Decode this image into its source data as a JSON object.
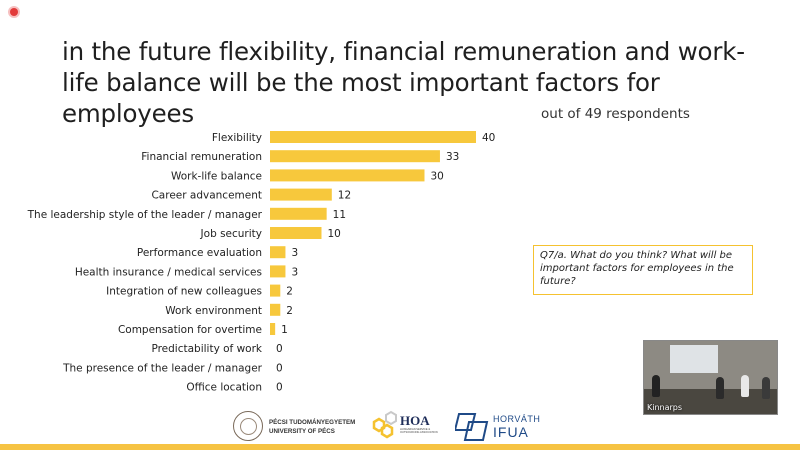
{
  "title": "in the future flexibility, financial remuneration and work-life balance will be the most important factors for employees",
  "subtitle": "out of 49 respondents",
  "question": "Q7/a. What do you think? What will be important factors for employees in the future?",
  "video": {
    "caption": "Kinnarps"
  },
  "logos": {
    "pte_line1": "PÉCSI TUDOMÁNYEGYETEM",
    "pte_line2": "UNIVERSITY OF PÉCS",
    "hoa_name": "HOA",
    "hoa_sub": "HUNGARIAN SERVICE & OUTSOURCING ASSOCIATION",
    "horvath_line1": "HORVÁTH",
    "horvath_line2": "IFUA"
  },
  "colors": {
    "bar": "#f7c83c",
    "accent": "#f5c230",
    "horvath": "#1f4a87",
    "hoa": "#1f2e5a"
  },
  "chart_data": {
    "type": "bar",
    "orientation": "horizontal",
    "categories": [
      "Flexibility",
      "Financial remuneration",
      "Work-life balance",
      "Career advancement",
      "The leadership style of the leader / manager",
      "Job security",
      "Performance evaluation",
      "Health insurance / medical services",
      "Integration of new colleagues",
      "Work environment",
      "Compensation for overtime",
      "Predictability of work",
      "The presence of the leader / manager",
      "Office location"
    ],
    "values": [
      40,
      33,
      30,
      12,
      11,
      10,
      3,
      3,
      2,
      2,
      1,
      0,
      0,
      0
    ],
    "labels": [
      "40",
      "33",
      "30",
      "12",
      "11",
      "10",
      "3",
      "3",
      "2",
      "2",
      "1",
      "0",
      "0",
      "0"
    ],
    "xlim": [
      0,
      45
    ],
    "grid": false,
    "legend": "none"
  }
}
